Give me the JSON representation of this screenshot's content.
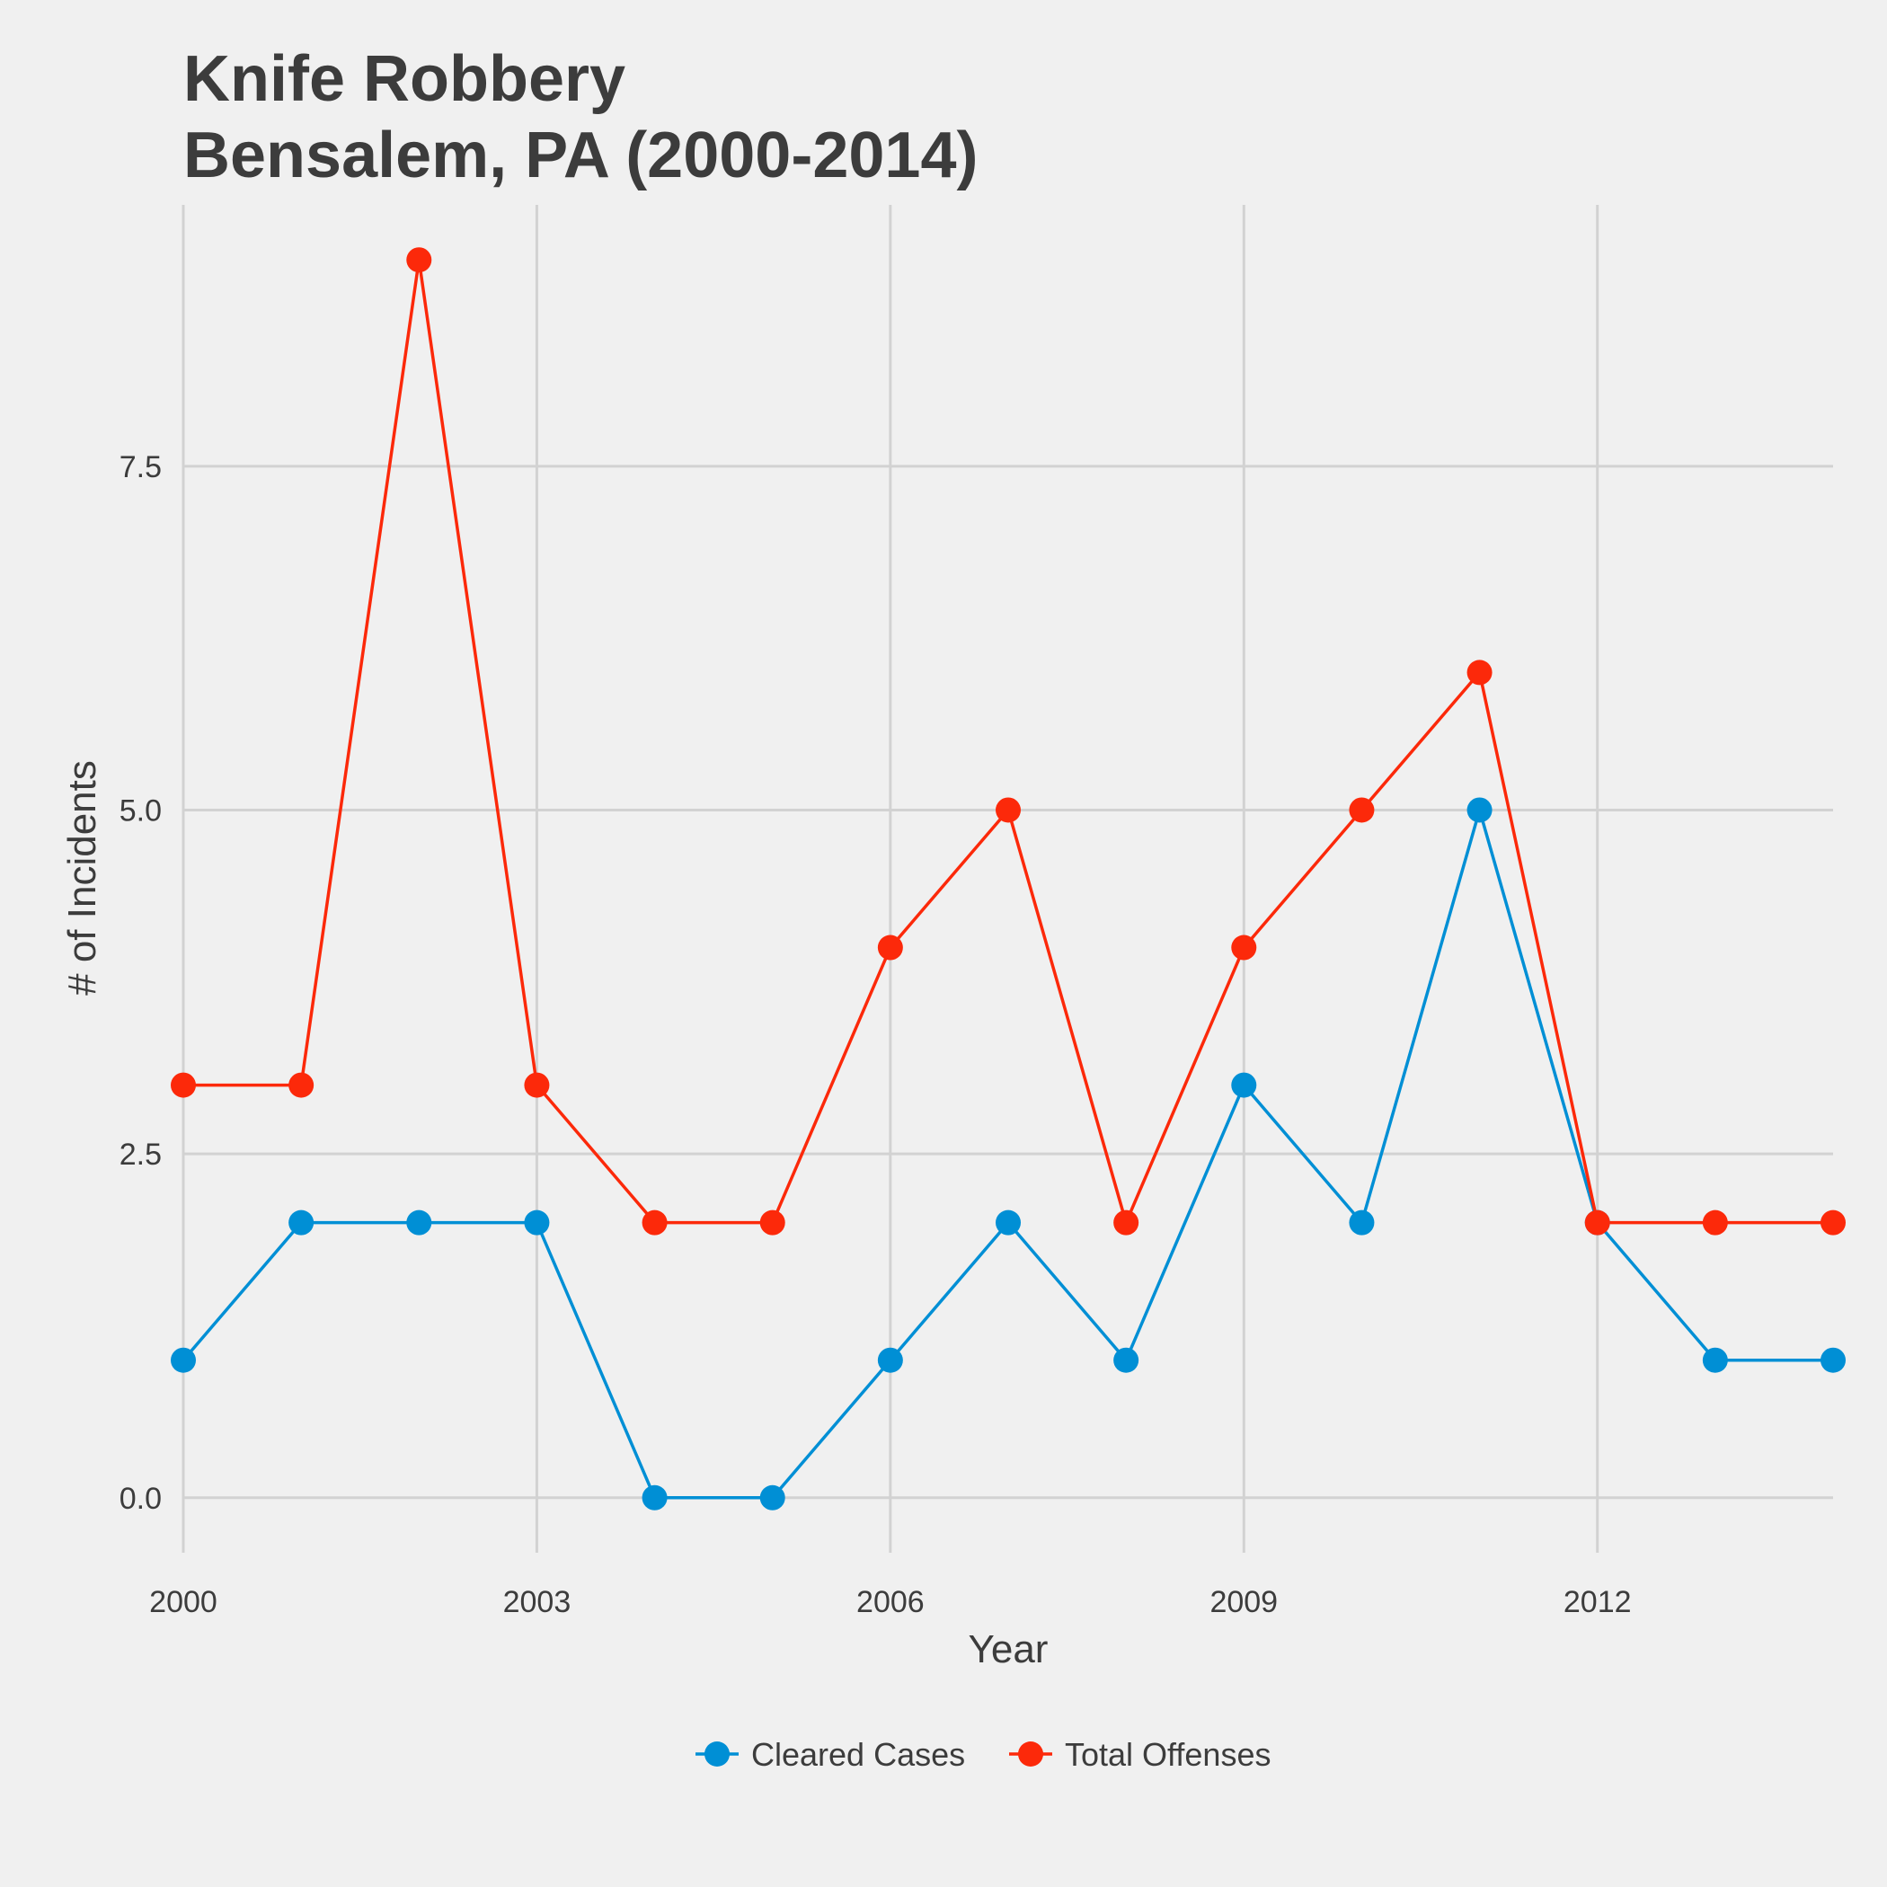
{
  "chart_data": {
    "type": "line",
    "title": [
      "Knife Robbery",
      "Bensalem, PA (2000-2014)"
    ],
    "xlabel": "Year",
    "ylabel": "# of Incidents",
    "x": [
      2000,
      2001,
      2002,
      2003,
      2004,
      2005,
      2006,
      2007,
      2008,
      2009,
      2010,
      2011,
      2012,
      2013,
      2014
    ],
    "xlim": [
      2000,
      2014
    ],
    "ylim": [
      -0.4,
      9.4
    ],
    "x_ticks": [
      2000,
      2003,
      2006,
      2009,
      2012
    ],
    "x_tick_labels": [
      "2000",
      "2003",
      "2006",
      "2009",
      "2012"
    ],
    "y_ticks": [
      0,
      2.5,
      5,
      7.5
    ],
    "y_tick_labels": [
      "0.0",
      "2.5",
      "5.0",
      "7.5"
    ],
    "grid": true,
    "legend_position": "bottom",
    "series": [
      {
        "name": "Cleared Cases",
        "color": "#008fd5",
        "values": [
          1,
          2,
          2,
          2,
          0,
          0,
          1,
          2,
          1,
          3,
          2,
          5,
          2,
          1,
          1
        ]
      },
      {
        "name": "Total Offenses",
        "color": "#fc290a",
        "values": [
          3,
          3,
          9,
          3,
          2,
          2,
          4,
          5,
          2,
          4,
          5,
          6,
          2,
          2,
          2
        ]
      }
    ]
  }
}
